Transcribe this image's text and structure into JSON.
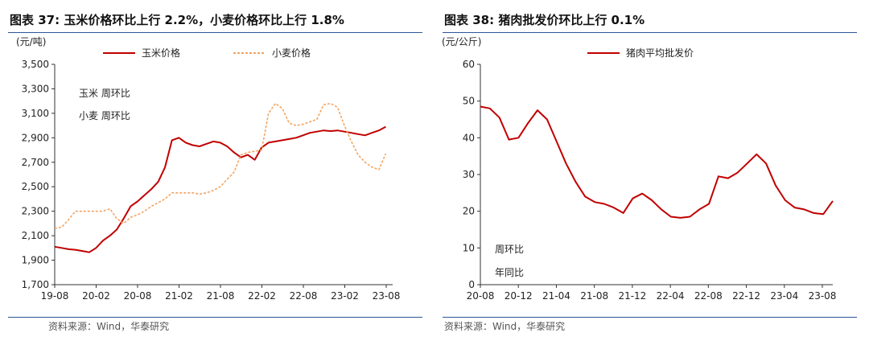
{
  "left": {
    "title": "图表 37:  玉米价格环比上行 2.2%，小麦价格环比上行 1.8%",
    "source": "资料来源：Wind，华泰研究",
    "chart_data": {
      "type": "line",
      "unit": "(元/吨)",
      "ylim": [
        1700,
        3500
      ],
      "yticks": [
        "1,700",
        "1,900",
        "2,100",
        "2,300",
        "2,500",
        "2,700",
        "2,900",
        "3,100",
        "3,300",
        "3,500"
      ],
      "xlabels": [
        "19-08",
        "20-02",
        "20-08",
        "21-02",
        "21-08",
        "22-02",
        "22-08",
        "23-02",
        "23-08"
      ],
      "xlim": [
        0,
        49
      ],
      "legend": [
        "玉米价格",
        "小麦价格"
      ],
      "notes": [
        "玉米  周环比",
        "小麦  周环比"
      ],
      "series": [
        {
          "name": "玉米价格",
          "color": "#c00000",
          "dash": "none",
          "points": [
            [
              0,
              2010
            ],
            [
              1,
              2000
            ],
            [
              2,
              1990
            ],
            [
              3,
              1985
            ],
            [
              4,
              1975
            ],
            [
              5,
              1965
            ],
            [
              6,
              2000
            ],
            [
              7,
              2060
            ],
            [
              8,
              2100
            ],
            [
              9,
              2150
            ],
            [
              10,
              2240
            ],
            [
              11,
              2340
            ],
            [
              12,
              2380
            ],
            [
              13,
              2430
            ],
            [
              14,
              2480
            ],
            [
              15,
              2540
            ],
            [
              16,
              2660
            ],
            [
              17,
              2880
            ],
            [
              18,
              2900
            ],
            [
              19,
              2860
            ],
            [
              20,
              2840
            ],
            [
              21,
              2830
            ],
            [
              22,
              2850
            ],
            [
              23,
              2870
            ],
            [
              24,
              2860
            ],
            [
              25,
              2830
            ],
            [
              26,
              2780
            ],
            [
              27,
              2740
            ],
            [
              28,
              2760
            ],
            [
              29,
              2720
            ],
            [
              30,
              2820
            ],
            [
              31,
              2860
            ],
            [
              32,
              2870
            ],
            [
              33,
              2880
            ],
            [
              34,
              2890
            ],
            [
              35,
              2900
            ],
            [
              36,
              2920
            ],
            [
              37,
              2940
            ],
            [
              38,
              2950
            ],
            [
              39,
              2960
            ],
            [
              40,
              2955
            ],
            [
              41,
              2960
            ],
            [
              42,
              2950
            ],
            [
              43,
              2940
            ],
            [
              44,
              2930
            ],
            [
              45,
              2920
            ],
            [
              46,
              2940
            ],
            [
              47,
              2960
            ],
            [
              48,
              2990
            ]
          ]
        },
        {
          "name": "小麦价格",
          "color": "#f4a460",
          "dash": "3,2",
          "points": [
            [
              0,
              2160
            ],
            [
              1,
              2170
            ],
            [
              2,
              2230
            ],
            [
              3,
              2300
            ],
            [
              4,
              2300
            ],
            [
              5,
              2300
            ],
            [
              6,
              2300
            ],
            [
              7,
              2300
            ],
            [
              8,
              2320
            ],
            [
              9,
              2240
            ],
            [
              10,
              2200
            ],
            [
              11,
              2250
            ],
            [
              12,
              2270
            ],
            [
              13,
              2300
            ],
            [
              14,
              2340
            ],
            [
              15,
              2370
            ],
            [
              16,
              2400
            ],
            [
              17,
              2450
            ],
            [
              18,
              2450
            ],
            [
              19,
              2450
            ],
            [
              20,
              2450
            ],
            [
              21,
              2440
            ],
            [
              22,
              2450
            ],
            [
              23,
              2470
            ],
            [
              24,
              2500
            ],
            [
              25,
              2560
            ],
            [
              26,
              2620
            ],
            [
              27,
              2760
            ],
            [
              28,
              2780
            ],
            [
              29,
              2790
            ],
            [
              30,
              2800
            ],
            [
              31,
              3100
            ],
            [
              32,
              3180
            ],
            [
              33,
              3140
            ],
            [
              34,
              3020
            ],
            [
              35,
              3000
            ],
            [
              36,
              3010
            ],
            [
              37,
              3030
            ],
            [
              38,
              3050
            ],
            [
              39,
              3170
            ],
            [
              40,
              3180
            ],
            [
              41,
              3150
            ],
            [
              42,
              3000
            ],
            [
              43,
              2870
            ],
            [
              44,
              2760
            ],
            [
              45,
              2700
            ],
            [
              46,
              2660
            ],
            [
              47,
              2640
            ],
            [
              48,
              2770
            ]
          ]
        }
      ]
    }
  },
  "right": {
    "title": "图表 38:  猪肉批发价环比上行 0.1%",
    "source": "资料来源：Wind，华泰研究",
    "chart_data": {
      "type": "line",
      "unit": "(元/公斤)",
      "ylim": [
        0,
        60
      ],
      "yticks": [
        "0",
        "10",
        "20",
        "30",
        "40",
        "50",
        "60"
      ],
      "xlabels": [
        "20-08",
        "20-12",
        "21-04",
        "21-08",
        "21-12",
        "22-04",
        "22-08",
        "22-12",
        "23-04",
        "23-08"
      ],
      "xlim": [
        0,
        37
      ],
      "legend": [
        "猪肉平均批发价"
      ],
      "notes": [
        "周环比",
        "年同比"
      ],
      "series": [
        {
          "name": "猪肉平均批发价",
          "color": "#c00000",
          "dash": "none",
          "points": [
            [
              0,
              48.5
            ],
            [
              1,
              48
            ],
            [
              2,
              45.5
            ],
            [
              3,
              39.5
            ],
            [
              4,
              40
            ],
            [
              5,
              44
            ],
            [
              6,
              47.5
            ],
            [
              7,
              45
            ],
            [
              8,
              39
            ],
            [
              9,
              33
            ],
            [
              10,
              28
            ],
            [
              11,
              24
            ],
            [
              12,
              22.5
            ],
            [
              13,
              22
            ],
            [
              14,
              21
            ],
            [
              15,
              19.5
            ],
            [
              16,
              23.5
            ],
            [
              17,
              24.8
            ],
            [
              18,
              23
            ],
            [
              19,
              20.5
            ],
            [
              20,
              18.5
            ],
            [
              21,
              18.2
            ],
            [
              22,
              18.5
            ],
            [
              23,
              20.5
            ],
            [
              24,
              22
            ],
            [
              25,
              29.5
            ],
            [
              26,
              29
            ],
            [
              27,
              30.5
            ],
            [
              28,
              33
            ],
            [
              29,
              35.5
            ],
            [
              30,
              33
            ],
            [
              31,
              27
            ],
            [
              32,
              23
            ],
            [
              33,
              21
            ],
            [
              34,
              20.5
            ],
            [
              35,
              19.5
            ],
            [
              36,
              19.2
            ],
            [
              37,
              22.8
            ]
          ]
        }
      ]
    }
  }
}
